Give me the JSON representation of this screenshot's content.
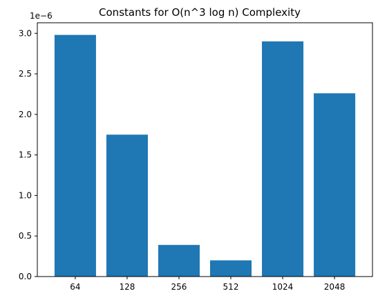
{
  "chart_data": {
    "type": "bar",
    "title": "Constants for O(n^3 log n) Complexity",
    "xlabel": "",
    "ylabel": "",
    "categories": [
      "64",
      "128",
      "256",
      "512",
      "1024",
      "2048"
    ],
    "values": [
      2.98e-06,
      1.75e-06,
      3.9e-07,
      2e-07,
      2.9e-06,
      2.26e-06
    ],
    "y_scale_label": "1e−6",
    "yticks": [
      {
        "value": 0.0,
        "label": "0.0"
      },
      {
        "value": 5e-07,
        "label": "0.5"
      },
      {
        "value": 1e-06,
        "label": "1.0"
      },
      {
        "value": 1.5e-06,
        "label": "1.5"
      },
      {
        "value": 2e-06,
        "label": "2.0"
      },
      {
        "value": 2.5e-06,
        "label": "2.5"
      },
      {
        "value": 3e-06,
        "label": "3.0"
      }
    ],
    "ylim": [
      0,
      3.13e-06
    ],
    "grid": false,
    "bar_color": "#1f77b4"
  }
}
